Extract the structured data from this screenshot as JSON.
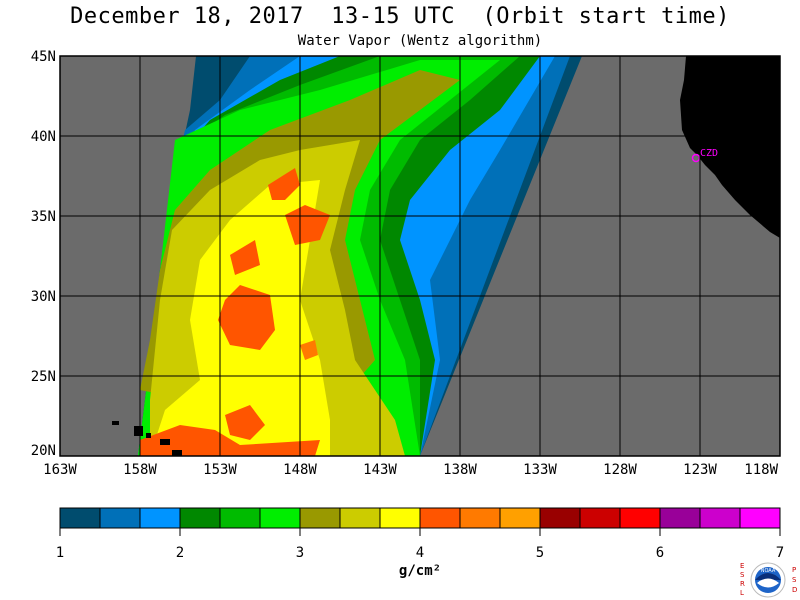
{
  "header": {
    "title": "December 18, 2017  13-15 UTC  (Orbit start time)",
    "subtitle": "Water Vapor (Wentz algorithm)"
  },
  "map": {
    "lat_labels": [
      "45N",
      "40N",
      "35N",
      "30N",
      "25N",
      "20N"
    ],
    "lon_labels": [
      "163W",
      "158W",
      "153W",
      "148W",
      "143W",
      "138W",
      "133W",
      "128W",
      "123W",
      "118W"
    ],
    "station_label": "CZD",
    "colors": {
      "no_data": "#6b6b6b",
      "land": "#000000",
      "station": "#ff00ff",
      "grid": "#000000"
    }
  },
  "colorbar": {
    "colors": [
      "#004c6e",
      "#0070b8",
      "#0094ff",
      "#008800",
      "#00bb00",
      "#00ee00",
      "#999900",
      "#cccc00",
      "#ffff00",
      "#ff5500",
      "#ff7a00",
      "#ffa000",
      "#990000",
      "#cc0000",
      "#ff0000",
      "#990099",
      "#cc00cc",
      "#ff00ff"
    ],
    "tick_labels": [
      "1",
      "2",
      "3",
      "4",
      "5",
      "6",
      "7"
    ],
    "unit": "g/cm²"
  },
  "logo": {
    "left_letters": "ESRL",
    "right_letters": "PSD",
    "center_text": "NOAA"
  }
}
